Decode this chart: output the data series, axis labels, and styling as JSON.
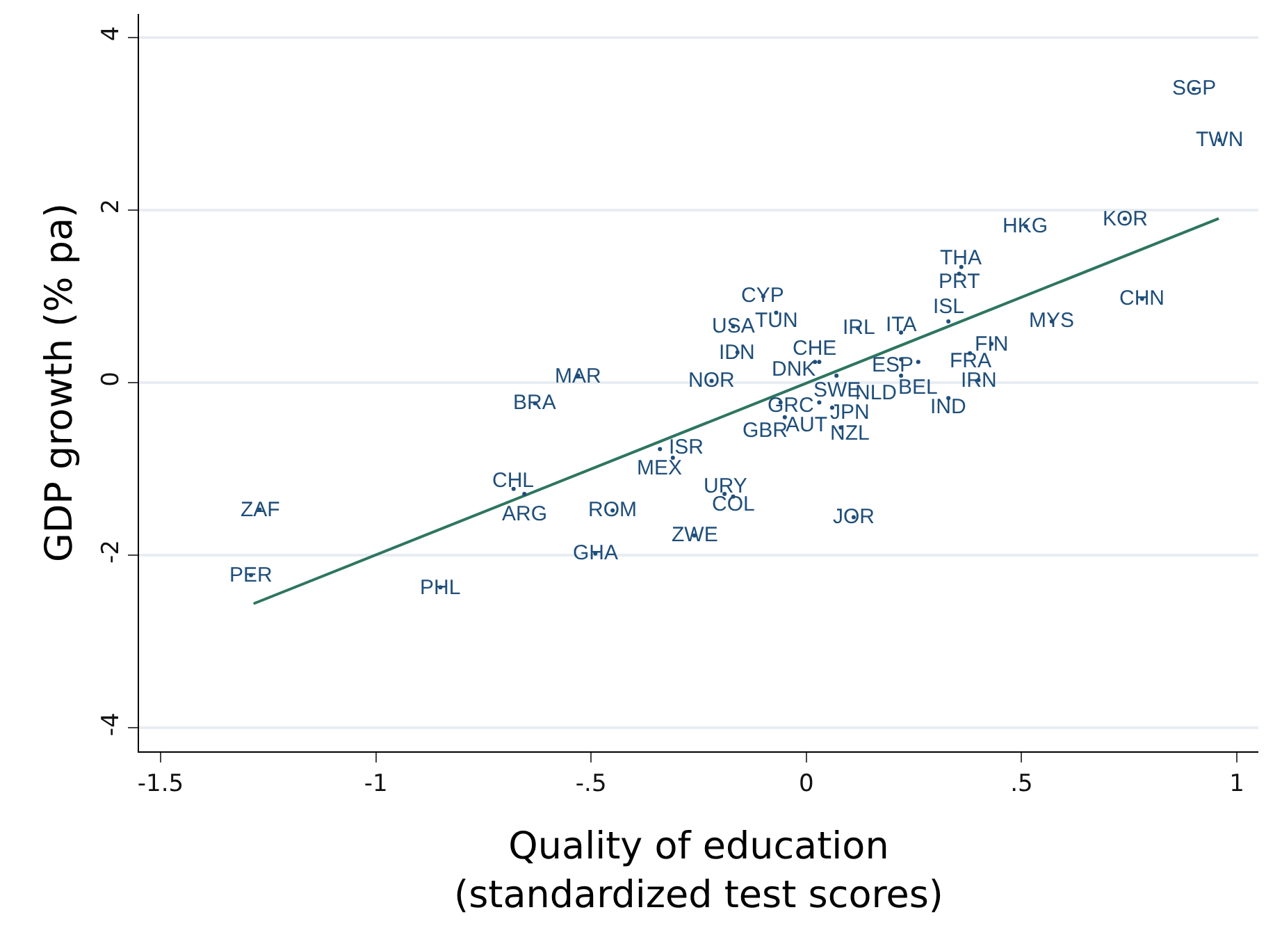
{
  "chart_data": {
    "type": "scatter",
    "xlabel": "Quality of education\n(standardized test scores)",
    "ylabel": "GDP growth (% pa)",
    "xlim": [
      -1.55,
      1.05
    ],
    "ylim": [
      -4.27,
      4.27
    ],
    "xticks": [
      {
        "value": -1.5,
        "label": "-1.5"
      },
      {
        "value": -1,
        "label": "-1"
      },
      {
        "value": -0.5,
        "label": "-.5"
      },
      {
        "value": 0,
        "label": "0"
      },
      {
        "value": 0.5,
        "label": ".5"
      },
      {
        "value": 1,
        "label": "1"
      }
    ],
    "yticks": [
      -4,
      -2,
      0,
      2,
      4
    ],
    "grid": "y",
    "marker": "none",
    "series": [
      {
        "type": "scatter",
        "color": "#1f4e79",
        "x": [
          0.9,
          0.96,
          0.74,
          0.51,
          0.36,
          0.355,
          0.78,
          0.57,
          0.33,
          0.12,
          0.22,
          -0.1,
          -0.07,
          -0.17,
          -0.16,
          0.43,
          0.38,
          0.22,
          0.26,
          0.02,
          0.03,
          0.07,
          0.22,
          0.33,
          0.4,
          -0.22,
          -0.53,
          -0.63,
          -0.06,
          0.03,
          0.06,
          -0.05,
          0.08,
          -0.34,
          -0.31,
          -0.68,
          -0.655,
          -0.45,
          -0.19,
          -0.17,
          -0.26,
          0.11,
          -0.49,
          -1.27,
          -1.29,
          -0.85
        ],
        "values": [
          3.4,
          2.81,
          1.9,
          1.81,
          1.34,
          1.26,
          0.97,
          0.71,
          0.71,
          0.63,
          0.58,
          1.0,
          0.81,
          0.65,
          0.35,
          0.45,
          0.34,
          0.27,
          0.24,
          0.24,
          0.24,
          0.08,
          0.08,
          -0.18,
          0.03,
          0.02,
          0.08,
          -0.24,
          -0.23,
          -0.23,
          -0.29,
          -0.4,
          -0.52,
          -0.77,
          -0.87,
          -1.23,
          -1.29,
          -1.48,
          -1.29,
          -1.32,
          -1.77,
          -1.56,
          -1.98,
          -1.47,
          -2.23,
          -2.37
        ],
        "value_labels": [
          "SGP",
          "TWN",
          "KOR",
          "HKG",
          "THA",
          "PRT",
          "CHN",
          "MYS",
          "ISL",
          "IRL",
          "ITA",
          "CYP",
          "TUN",
          "USA",
          "IDN",
          "FIN",
          "FRA",
          "ESP",
          "BEL",
          "CHE",
          "DNK",
          "SWE",
          "NLD",
          "IND",
          "IRN",
          "NOR",
          "MAR",
          "BRA",
          "GRC",
          "AUT",
          "JPN",
          "GBR",
          "NZL",
          "MEX",
          "ISR",
          "CHL",
          "ARG",
          "ROM",
          "URY",
          "COL",
          "ZWE",
          "JOR",
          "GHA",
          "ZAF",
          "PER",
          "PHL"
        ]
      },
      {
        "type": "line",
        "color": "#2e7560",
        "x": [
          -1.284,
          0.958
        ],
        "values": [
          -2.56,
          1.9
        ]
      }
    ]
  }
}
